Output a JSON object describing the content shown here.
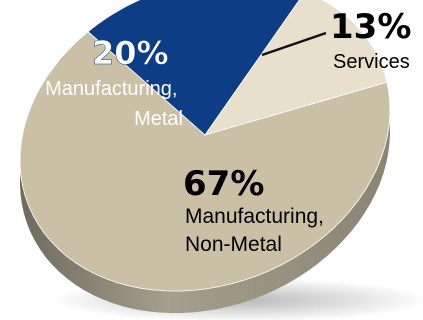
{
  "chart_data": {
    "type": "pie",
    "style": "3d-tilted",
    "title": "",
    "slices": [
      {
        "label": "Manufacturing, Non-Metal",
        "label_lines": [
          "Manufacturing,",
          "Non-Metal"
        ],
        "value": 67,
        "value_label": "67%",
        "color": "#c9c0a6"
      },
      {
        "label": "Manufacturing, Metal",
        "label_lines": [
          "Manufacturing,",
          "Metal"
        ],
        "value": 20,
        "value_label": "20%",
        "color": "#0d3d85"
      },
      {
        "label": "Services",
        "label_lines": [
          "Services"
        ],
        "value": 13,
        "value_label": "13%",
        "color": "#e8dfcc"
      }
    ],
    "text_color": "#111111",
    "label_on_dark_color": "#ffffff"
  }
}
